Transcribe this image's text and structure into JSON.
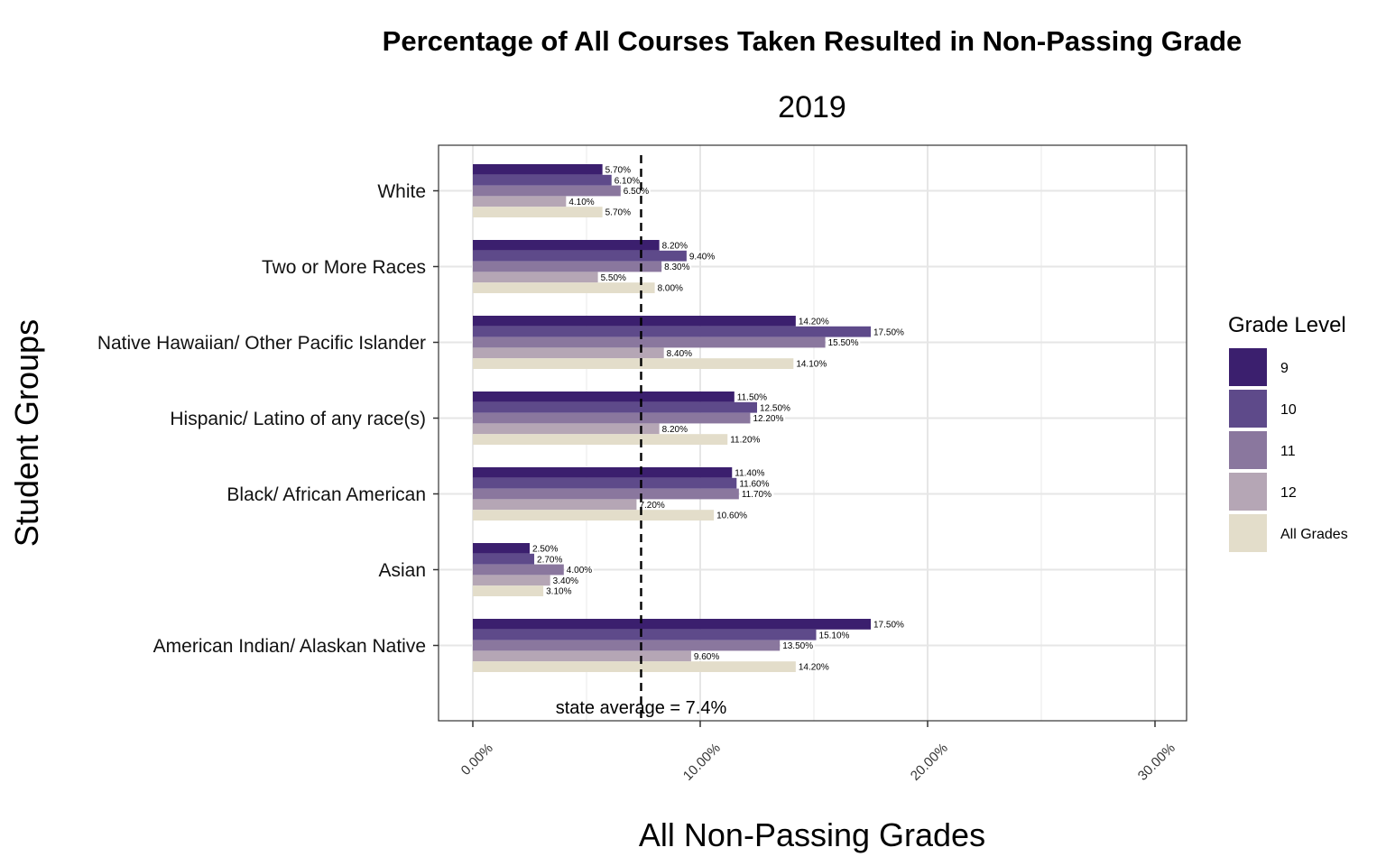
{
  "chart_data": {
    "type": "bar",
    "orientation": "horizontal",
    "title": "Percentage of All Courses Taken Resulted in Non-Passing Grade",
    "subtitle": "2019",
    "xlabel": "All Non-Passing Grades",
    "ylabel": "Student Groups",
    "xlim": [
      0,
      30
    ],
    "x_ticks": [
      "0.00%",
      "10.00%",
      "20.00%",
      "30.00%"
    ],
    "x_tick_values": [
      0,
      10,
      20,
      30
    ],
    "grid": true,
    "legend": {
      "title": "Grade Level",
      "position": "right"
    },
    "categories": [
      "White",
      "Two or More Races",
      "Native Hawaiian/ Other Pacific Islander",
      "Hispanic/ Latino of any race(s)",
      "Black/ African American",
      "Asian",
      "American Indian/ Alaskan Native"
    ],
    "series": [
      {
        "name": "9",
        "color": "#3b1f6e",
        "values": [
          5.7,
          8.2,
          14.2,
          11.5,
          11.4,
          2.5,
          17.5
        ],
        "labels": [
          "5.70%",
          "8.20%",
          "14.20%",
          "11.50%",
          "11.40%",
          "2.50%",
          "17.50%"
        ]
      },
      {
        "name": "10",
        "color": "#5e4a8a",
        "values": [
          6.1,
          9.4,
          17.5,
          12.5,
          11.6,
          2.7,
          15.1
        ],
        "labels": [
          "6.10%",
          "9.40%",
          "17.50%",
          "12.50%",
          "11.60%",
          "2.70%",
          "15.10%"
        ]
      },
      {
        "name": "11",
        "color": "#8a779e",
        "values": [
          6.5,
          8.3,
          15.5,
          12.2,
          11.7,
          4.0,
          13.5
        ],
        "labels": [
          "6.50%",
          "8.30%",
          "15.50%",
          "12.20%",
          "11.70%",
          "4.00%",
          "13.50%"
        ]
      },
      {
        "name": "12",
        "color": "#b5a6b5",
        "values": [
          4.1,
          5.5,
          8.4,
          8.2,
          7.2,
          3.4,
          9.6
        ],
        "labels": [
          "4.10%",
          "5.50%",
          "8.40%",
          "8.20%",
          "7.20%",
          "3.40%",
          "9.60%"
        ]
      },
      {
        "name": "All Grades",
        "color": "#e3ddca",
        "values": [
          5.7,
          8.0,
          14.1,
          11.2,
          10.6,
          3.1,
          14.2
        ],
        "labels": [
          "5.70%",
          "8.00%",
          "14.10%",
          "11.20%",
          "10.60%",
          "3.10%",
          "14.20%"
        ]
      }
    ],
    "reference_line": {
      "value": 7.4,
      "label": "state average = 7.4%",
      "style": "dashed"
    }
  }
}
